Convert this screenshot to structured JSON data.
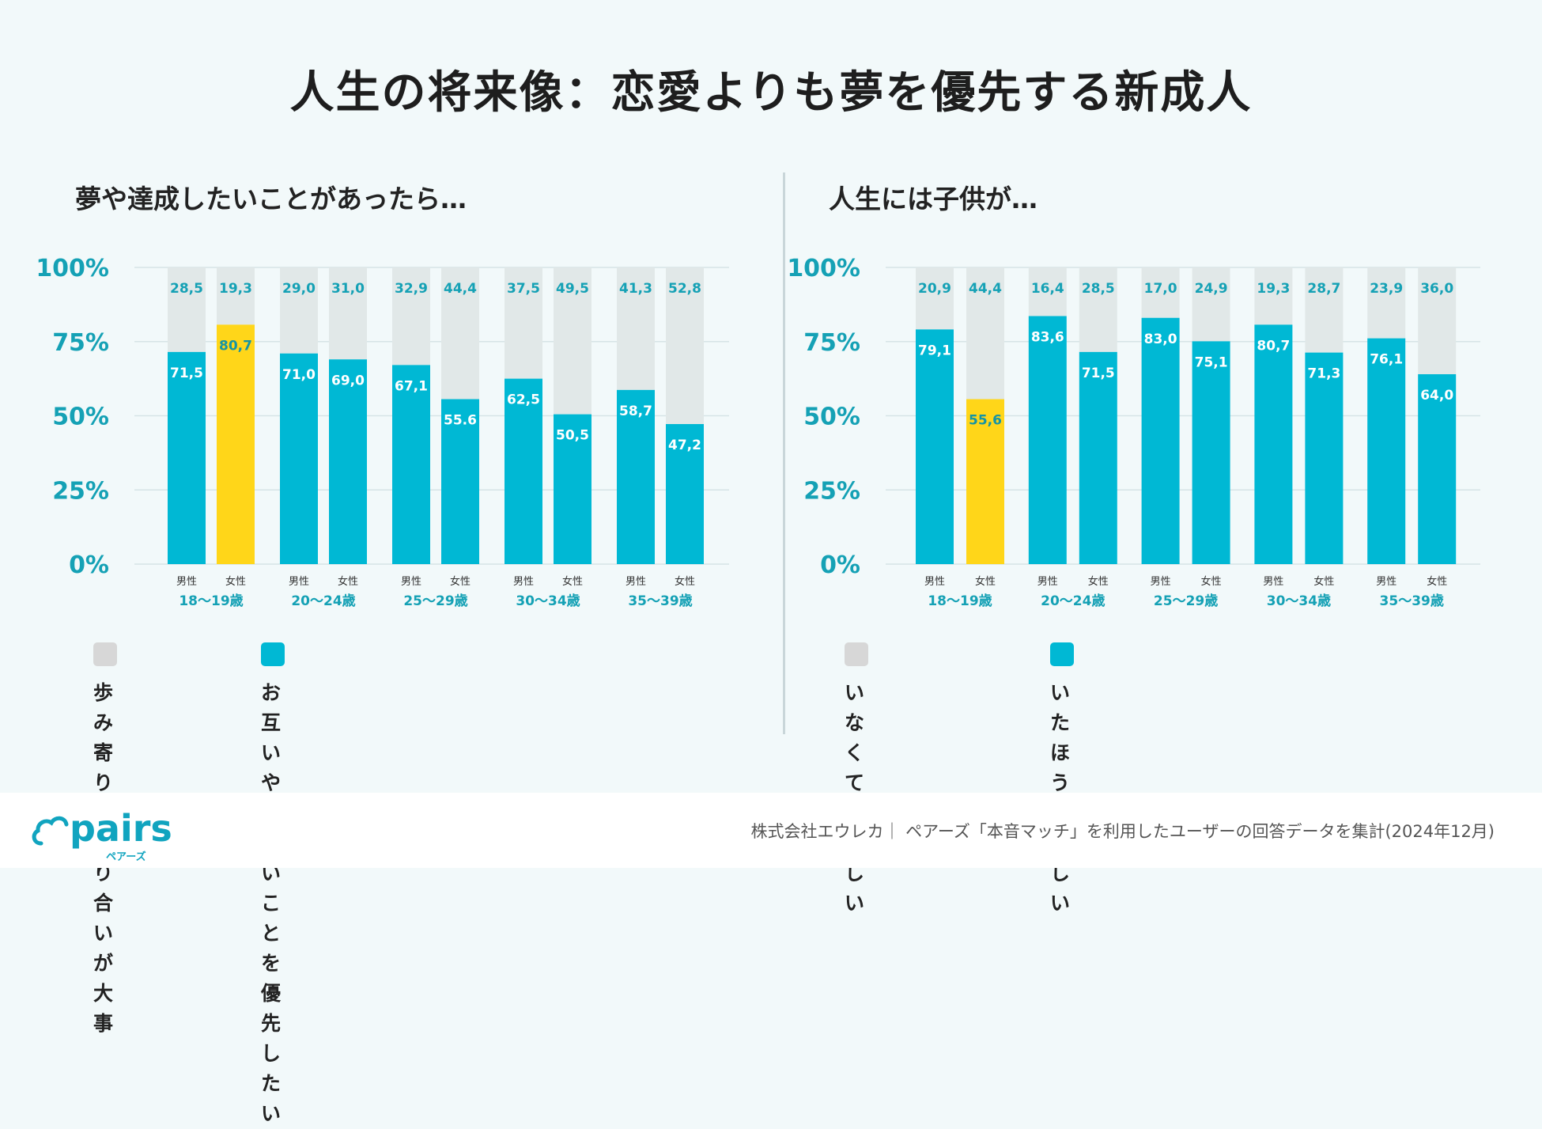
{
  "title": "人生の将来像：恋愛よりも夢を優先する新成人",
  "colors": {
    "teal": "#00b8d4",
    "highlight": "#ffd619",
    "gray_bar": "#e1e8e8",
    "gray_swatch": "#d7d7d7",
    "axis_text": "#15a1b5",
    "grid": "#d6e4e6",
    "teal_label": "#ffffff",
    "gray_label": "#15a1b5",
    "highlight_label": "#1594a5"
  },
  "chart_data": [
    {
      "type": "bar",
      "stacked": true,
      "title": "夢や達成したいことがあったら…",
      "ylim": [
        0,
        100
      ],
      "yticks": [
        "0%",
        "25%",
        "50%",
        "75%",
        "100%"
      ],
      "groups": [
        "18〜19歳",
        "20〜24歳",
        "25〜29歳",
        "30〜34歳",
        "35〜39歳"
      ],
      "sub_labels": [
        "男性",
        "女性"
      ],
      "bottom_values": [
        "71,5",
        "80,7",
        "71,0",
        "69,0",
        "67,1",
        "55.6",
        "62,5",
        "50,5",
        "58,7",
        "47,2"
      ],
      "top_values": [
        "28,5",
        "19,3",
        "29,0",
        "31,0",
        "32,9",
        "44,4",
        "37,5",
        "49,5",
        "41,3",
        "52,8"
      ],
      "highlight_index": 1,
      "series": [
        {
          "name": "お互いやりたい\nことを優先したい",
          "values": [
            71.5,
            80.7,
            71.0,
            69.0,
            67.1,
            55.6,
            62.5,
            50.5,
            58.7,
            47.2
          ]
        },
        {
          "name": "歩み寄りや\n譲り合いが大事",
          "values": [
            28.5,
            19.3,
            29.0,
            31.0,
            32.9,
            44.4,
            37.5,
            49.5,
            41.3,
            52.8
          ]
        }
      ],
      "legend": [
        {
          "color_key": "gray_swatch",
          "label": "歩み寄りや\n譲り合いが大事"
        },
        {
          "color_key": "teal",
          "label": "お互いやりたい\nことを優先したい"
        }
      ]
    },
    {
      "type": "bar",
      "stacked": true,
      "title": "人生には子供が…",
      "ylim": [
        0,
        100
      ],
      "yticks": [
        "0%",
        "25%",
        "50%",
        "75%",
        "100%"
      ],
      "groups": [
        "18〜19歳",
        "20〜24歳",
        "25〜29歳",
        "30〜34歳",
        "35〜39歳"
      ],
      "sub_labels": [
        "男性",
        "女性"
      ],
      "bottom_values": [
        "79,1",
        "55,6",
        "83,6",
        "71,5",
        "83,0",
        "75,1",
        "80,7",
        "71,3",
        "76,1",
        "64,0"
      ],
      "top_values": [
        "20,9",
        "44,4",
        "16,4",
        "28,5",
        "17,0",
        "24,9",
        "19,3",
        "28,7",
        "23,9",
        "36,0"
      ],
      "highlight_index": 1,
      "series": [
        {
          "name": "いたほうが楽しい",
          "values": [
            79.1,
            55.6,
            83.6,
            71.5,
            83.0,
            75.1,
            80.7,
            71.3,
            76.1,
            64.0
          ]
        },
        {
          "name": "いなくても楽しい",
          "values": [
            20.9,
            44.4,
            16.4,
            28.5,
            17.0,
            24.9,
            19.3,
            28.7,
            23.9,
            36.0
          ]
        }
      ],
      "legend": [
        {
          "color_key": "gray_swatch",
          "label": "いなくても楽しい"
        },
        {
          "color_key": "teal",
          "label": "いたほうが楽しい"
        }
      ]
    }
  ],
  "footer": {
    "logo_text": "pairs",
    "logo_sub": "ペアーズ",
    "credit": "株式会社エウレカ｜ ペアーズ「本音マッチ」を利用したユーザーの回答データを集計(2024年12月)"
  }
}
